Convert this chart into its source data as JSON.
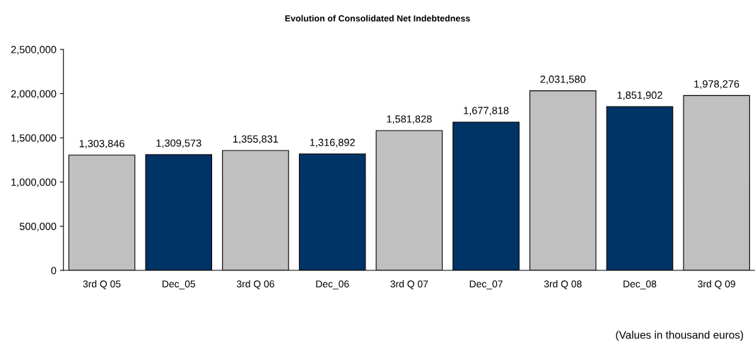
{
  "chart_data": {
    "type": "bar",
    "title": "Evolution of Consolidated Net Indebtedness",
    "categories": [
      "3rd Q 05",
      "Dec_05",
      "3rd Q 06",
      "Dec_06",
      "3rd Q 07",
      "Dec_07",
      "3rd Q 08",
      "Dec_08",
      "3rd Q 09"
    ],
    "values": [
      1303846,
      1309573,
      1355831,
      1316892,
      1581828,
      1677818,
      2031580,
      1851902,
      1978276
    ],
    "colors": [
      "#c0c0c0",
      "#003366",
      "#c0c0c0",
      "#003366",
      "#c0c0c0",
      "#003366",
      "#c0c0c0",
      "#003366",
      "#c0c0c0"
    ],
    "value_labels": [
      "1,303,846",
      "1,309,573",
      "1,355,831",
      "1,316,892",
      "1,581,828",
      "1,677,818",
      "2,031,580",
      "1,851,902",
      "1,978,276"
    ],
    "ylim": [
      0,
      2500000
    ],
    "yticks": [
      0,
      {
        "value": 500000,
        "label": "500,000"
      },
      {
        "value": 1000000,
        "label": "1,000,000"
      },
      {
        "value": 1500000,
        "label": "1,500,000"
      },
      {
        "value": 2000000,
        "label": "2,000,000"
      },
      {
        "value": 2500000,
        "label": "2,500,000"
      }
    ],
    "grid": false,
    "legend": false,
    "annotations": [
      "(Values in thousand euros)"
    ]
  }
}
